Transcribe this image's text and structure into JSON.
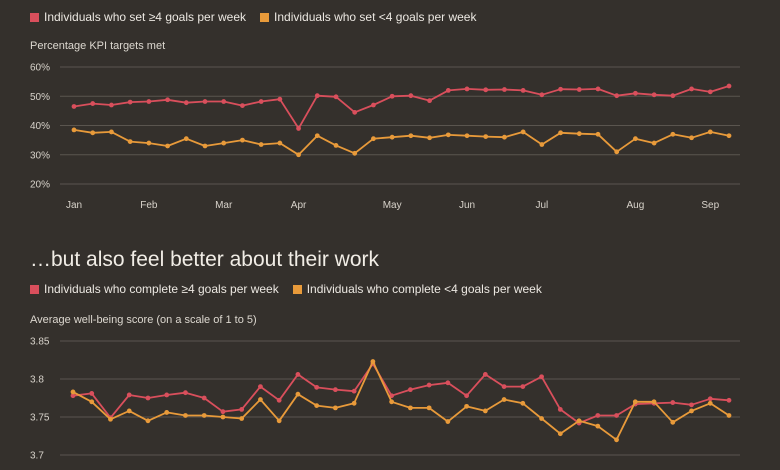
{
  "colors": {
    "red": "#d94f5c",
    "orange": "#e89a3a",
    "grid": "#5a554f",
    "bg": "#34302c"
  },
  "chart_data": [
    {
      "type": "line",
      "title": "",
      "legend": "top",
      "ylabel": "Percentage KPI targets met",
      "ylim": [
        20,
        60
      ],
      "yticks": [
        "20%",
        "30%",
        "40%",
        "50%",
        "60%"
      ],
      "ytick_values": [
        20,
        30,
        40,
        50,
        60
      ],
      "month_labels": [
        "Jan",
        "Feb",
        "Mar",
        "Apr",
        "May",
        "Jun",
        "Jul",
        "Aug",
        "Sep"
      ],
      "month_label_index": [
        0,
        4,
        8,
        12,
        17,
        21,
        25,
        30,
        34
      ],
      "series": [
        {
          "name": "Individuals who set ≥4 goals per week",
          "values": [
            46.5,
            47.5,
            47,
            48,
            48.2,
            48.8,
            47.8,
            48.2,
            48.2,
            46.8,
            48.2,
            49,
            39,
            50.2,
            49.8,
            44.5,
            47,
            50,
            50.2,
            48.5,
            52,
            52.5,
            52.2,
            52.3,
            52,
            50.5,
            52.4,
            52.3,
            52.5,
            50.2,
            51,
            50.5,
            50.2,
            52.5,
            51.5,
            53.5
          ]
        },
        {
          "name": "Individuals who set <4 goals per week",
          "values": [
            38.5,
            37.5,
            37.8,
            34.5,
            34,
            33,
            35.5,
            33,
            34,
            35,
            33.5,
            34,
            30,
            36.5,
            33.2,
            30.5,
            35.5,
            36,
            36.5,
            35.8,
            36.8,
            36.5,
            36.2,
            36,
            37.8,
            33.5,
            37.5,
            37.2,
            37,
            31,
            35.5,
            34,
            37,
            35.8,
            37.8,
            36.5
          ]
        }
      ]
    },
    {
      "type": "line",
      "title": "…but also feel better about their work",
      "legend": "top",
      "ylabel": "Average well-being score (on a scale of 1 to 5)",
      "ylim": [
        3.7,
        3.85
      ],
      "yticks": [
        "3.7",
        "3.75",
        "3.8",
        "3.85"
      ],
      "ytick_values": [
        3.7,
        3.75,
        3.8,
        3.85
      ],
      "series": [
        {
          "name": "Individuals who complete ≥4 goals per week",
          "values": [
            3.778,
            3.781,
            3.749,
            3.779,
            3.775,
            3.779,
            3.782,
            3.775,
            3.757,
            3.76,
            3.79,
            3.772,
            3.806,
            3.789,
            3.786,
            3.784,
            3.82,
            3.778,
            3.786,
            3.792,
            3.795,
            3.778,
            3.806,
            3.79,
            3.79,
            3.803,
            3.76,
            3.742,
            3.752,
            3.752,
            3.767,
            3.768,
            3.769,
            3.766,
            3.774,
            3.772
          ]
        },
        {
          "name": "Individuals who complete <4 goals per week",
          "values": [
            3.783,
            3.77,
            3.747,
            3.758,
            3.745,
            3.756,
            3.752,
            3.752,
            3.75,
            3.748,
            3.773,
            3.745,
            3.78,
            3.765,
            3.762,
            3.768,
            3.823,
            3.77,
            3.762,
            3.762,
            3.744,
            3.764,
            3.758,
            3.773,
            3.768,
            3.748,
            3.728,
            3.745,
            3.738,
            3.72,
            3.77,
            3.77,
            3.743,
            3.758,
            3.768,
            3.752
          ]
        }
      ]
    }
  ]
}
